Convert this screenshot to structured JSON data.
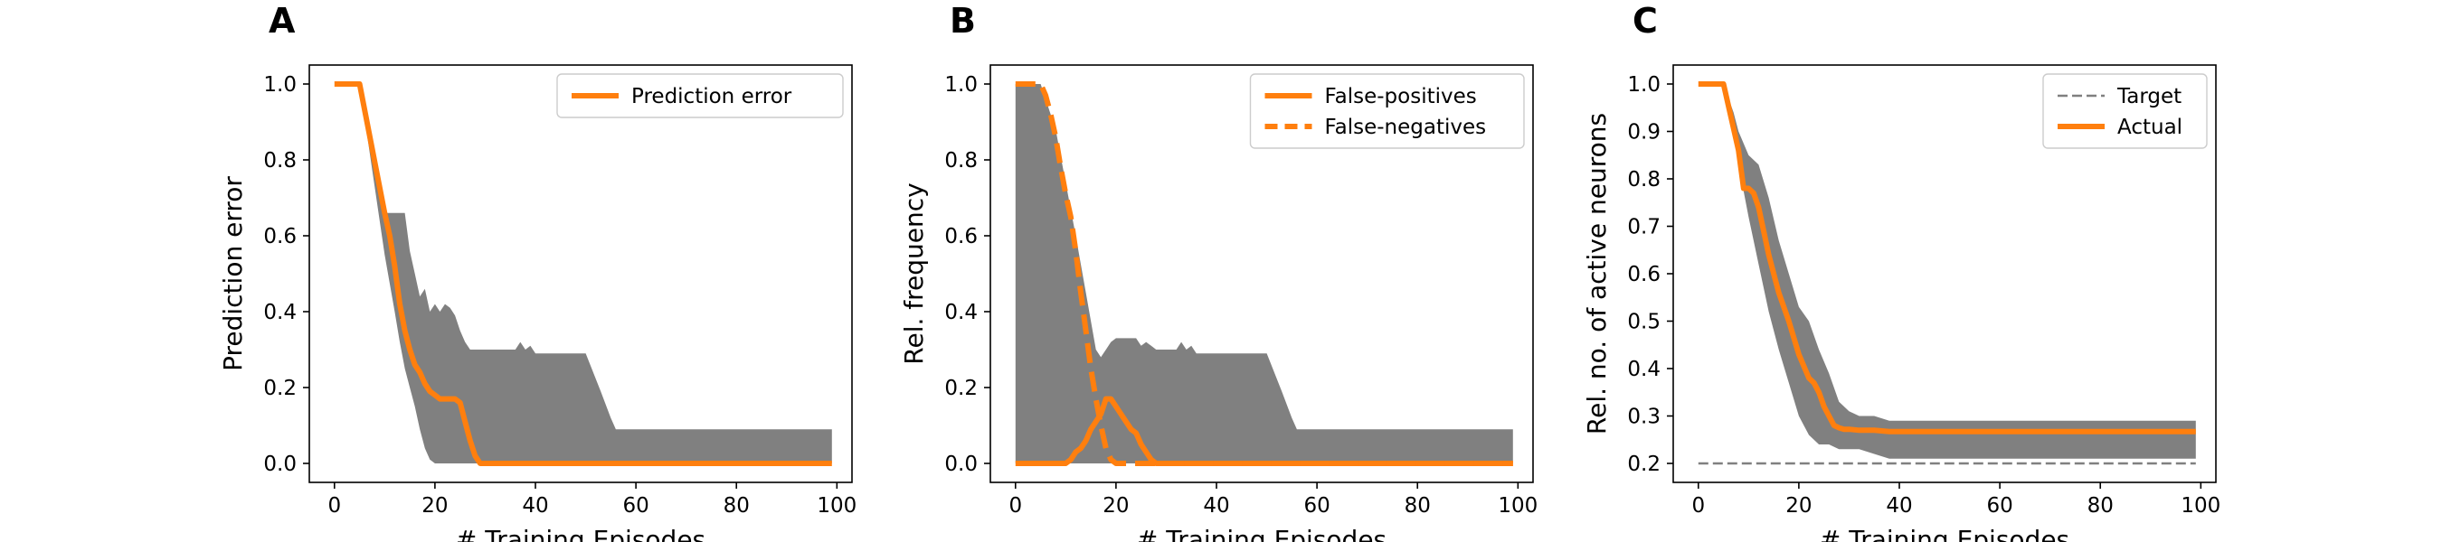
{
  "chart_data": [
    {
      "panel": "A",
      "type": "line",
      "xlabel": "# Training Episodes",
      "ylabel": "Prediction error",
      "xlim": [
        -5,
        103
      ],
      "ylim": [
        -0.05,
        1.05
      ],
      "xticks": [
        0,
        20,
        40,
        60,
        80,
        100
      ],
      "yticks": [
        0.0,
        0.2,
        0.4,
        0.6,
        0.8,
        1.0
      ],
      "ytick_labels": [
        "0.0",
        "0.2",
        "0.4",
        "0.6",
        "0.8",
        "1.0"
      ],
      "legend_position": "top-right",
      "band": {
        "x": [
          0,
          5,
          10,
          12,
          13,
          14,
          15,
          16,
          17,
          18,
          19,
          20,
          21,
          22,
          23,
          24,
          25,
          26,
          27,
          28,
          29,
          30,
          32,
          34,
          36,
          37,
          38,
          39,
          40,
          42,
          45,
          50,
          53,
          55,
          56,
          60,
          70,
          80,
          90,
          99
        ],
        "upper": [
          1.0,
          1.0,
          0.66,
          0.66,
          0.66,
          0.66,
          0.56,
          0.5,
          0.44,
          0.46,
          0.4,
          0.42,
          0.4,
          0.42,
          0.41,
          0.39,
          0.35,
          0.32,
          0.3,
          0.3,
          0.3,
          0.3,
          0.3,
          0.3,
          0.3,
          0.32,
          0.3,
          0.31,
          0.29,
          0.29,
          0.29,
          0.29,
          0.19,
          0.12,
          0.09,
          0.09,
          0.09,
          0.09,
          0.09,
          0.09
        ],
        "lower": [
          1.0,
          1.0,
          0.55,
          0.4,
          0.32,
          0.25,
          0.2,
          0.15,
          0.09,
          0.04,
          0.01,
          0.0,
          0.0,
          0.0,
          0.0,
          0.0,
          0.0,
          0.0,
          0.0,
          0.0,
          0.0,
          0.0,
          0.0,
          0.0,
          0.0,
          0.0,
          0.0,
          0.0,
          0.0,
          0.0,
          0.0,
          0.0,
          0.0,
          0.0,
          0.0,
          0.0,
          0.0,
          0.0,
          0.0,
          0.0
        ]
      },
      "series": [
        {
          "name": "Prediction error",
          "style": "solid",
          "color": "#ff7f0e",
          "x": [
            0,
            5,
            10,
            11,
            12,
            13,
            14,
            15,
            16,
            17,
            18,
            19,
            20,
            21,
            22,
            23,
            24,
            25,
            26,
            27,
            28,
            29,
            30,
            40,
            50,
            60,
            70,
            80,
            90,
            99
          ],
          "y": [
            1.0,
            1.0,
            0.66,
            0.6,
            0.52,
            0.42,
            0.35,
            0.3,
            0.26,
            0.24,
            0.21,
            0.19,
            0.18,
            0.17,
            0.17,
            0.17,
            0.17,
            0.16,
            0.11,
            0.06,
            0.02,
            0.0,
            0.0,
            0.0,
            0.0,
            0.0,
            0.0,
            0.0,
            0.0,
            0.0
          ]
        }
      ]
    },
    {
      "panel": "B",
      "type": "line",
      "xlabel": "# Training Episodes",
      "ylabel": "Rel. frequency",
      "xlim": [
        -5,
        103
      ],
      "ylim": [
        -0.05,
        1.05
      ],
      "xticks": [
        0,
        20,
        40,
        60,
        80,
        100
      ],
      "yticks": [
        0.0,
        0.2,
        0.4,
        0.6,
        0.8,
        1.0
      ],
      "ytick_labels": [
        "0.0",
        "0.2",
        "0.4",
        "0.6",
        "0.8",
        "1.0"
      ],
      "legend_position": "top-right",
      "band": {
        "x": [
          0,
          5,
          8,
          10,
          12,
          14,
          16,
          17,
          18,
          19,
          20,
          22,
          24,
          25,
          26,
          27,
          28,
          30,
          32,
          33,
          34,
          35,
          36,
          38,
          39,
          40,
          42,
          45,
          50,
          53,
          55,
          56,
          60,
          70,
          80,
          90,
          99
        ],
        "upper": [
          1.0,
          1.0,
          0.88,
          0.74,
          0.6,
          0.45,
          0.3,
          0.28,
          0.3,
          0.32,
          0.33,
          0.33,
          0.33,
          0.31,
          0.32,
          0.31,
          0.3,
          0.3,
          0.3,
          0.32,
          0.3,
          0.31,
          0.29,
          0.29,
          0.29,
          0.29,
          0.29,
          0.29,
          0.29,
          0.19,
          0.12,
          0.09,
          0.09,
          0.09,
          0.09,
          0.09,
          0.09
        ],
        "lower": [
          0.0,
          0.0,
          0.0,
          0.0,
          0.0,
          0.0,
          0.0,
          0.0,
          0.0,
          0.0,
          0.0,
          0.0,
          0.0,
          0.0,
          0.0,
          0.0,
          0.0,
          0.0,
          0.0,
          0.0,
          0.0,
          0.0,
          0.0,
          0.0,
          0.0,
          0.0,
          0.0,
          0.0,
          0.0,
          0.0,
          0.0,
          0.0,
          0.0,
          0.0,
          0.0,
          0.0,
          0.0
        ]
      },
      "series": [
        {
          "name": "False-positives",
          "style": "solid",
          "color": "#ff7f0e",
          "x": [
            0,
            5,
            10,
            11,
            12,
            13,
            14,
            15,
            16,
            17,
            18,
            19,
            20,
            21,
            22,
            23,
            24,
            25,
            26,
            27,
            28,
            30,
            40,
            50,
            60,
            70,
            80,
            90,
            99
          ],
          "y": [
            0.0,
            0.0,
            0.0,
            0.01,
            0.03,
            0.04,
            0.06,
            0.09,
            0.11,
            0.13,
            0.17,
            0.17,
            0.15,
            0.13,
            0.11,
            0.09,
            0.08,
            0.05,
            0.03,
            0.01,
            0.0,
            0.0,
            0.0,
            0.0,
            0.0,
            0.0,
            0.0,
            0.0,
            0.0
          ]
        },
        {
          "name": "False-negatives",
          "style": "dashed",
          "color": "#ff7f0e",
          "x": [
            0,
            5,
            6,
            7,
            8,
            9,
            10,
            11,
            12,
            13,
            14,
            15,
            16,
            17,
            18,
            19,
            20,
            22,
            25,
            30,
            40,
            50,
            60,
            70,
            80,
            90,
            99
          ],
          "y": [
            1.0,
            1.0,
            0.97,
            0.92,
            0.86,
            0.78,
            0.71,
            0.65,
            0.56,
            0.45,
            0.35,
            0.25,
            0.17,
            0.1,
            0.04,
            0.01,
            0.0,
            0.0,
            0.0,
            0.0,
            0.0,
            0.0,
            0.0,
            0.0,
            0.0,
            0.0,
            0.0
          ]
        }
      ]
    },
    {
      "panel": "C",
      "type": "line",
      "xlabel": "# Training Episodes",
      "ylabel": "Rel. no. of active neurons",
      "xlim": [
        -5,
        103
      ],
      "ylim": [
        0.16,
        1.04
      ],
      "xticks": [
        0,
        20,
        40,
        60,
        80,
        100
      ],
      "yticks": [
        0.2,
        0.3,
        0.4,
        0.5,
        0.6,
        0.7,
        0.8,
        0.9,
        1.0
      ],
      "ytick_labels": [
        "0.2",
        "0.3",
        "0.4",
        "0.5",
        "0.6",
        "0.7",
        "0.8",
        "0.9",
        "1.0"
      ],
      "legend_position": "top-right",
      "band": {
        "x": [
          0,
          5,
          7,
          8,
          10,
          12,
          14,
          16,
          18,
          20,
          22,
          24,
          26,
          28,
          30,
          32,
          35,
          38,
          40,
          50,
          60,
          70,
          80,
          90,
          99
        ],
        "upper": [
          1.0,
          1.0,
          0.94,
          0.9,
          0.85,
          0.83,
          0.76,
          0.67,
          0.6,
          0.53,
          0.5,
          0.44,
          0.39,
          0.33,
          0.31,
          0.3,
          0.3,
          0.29,
          0.29,
          0.29,
          0.29,
          0.29,
          0.29,
          0.29,
          0.29
        ],
        "lower": [
          1.0,
          1.0,
          0.9,
          0.83,
          0.72,
          0.62,
          0.52,
          0.44,
          0.37,
          0.3,
          0.26,
          0.24,
          0.24,
          0.23,
          0.23,
          0.23,
          0.22,
          0.21,
          0.21,
          0.21,
          0.21,
          0.21,
          0.21,
          0.21,
          0.21
        ]
      },
      "series": [
        {
          "name": "Target",
          "style": "dashed-thin",
          "color": "#808080",
          "x": [
            0,
            99
          ],
          "y": [
            0.2,
            0.2
          ]
        },
        {
          "name": "Actual",
          "style": "solid",
          "color": "#ff7f0e",
          "x": [
            0,
            5,
            8,
            9,
            10,
            11,
            12,
            13,
            14,
            15,
            16,
            18,
            20,
            22,
            23,
            24,
            25,
            26,
            27,
            28,
            29,
            30,
            32,
            35,
            38,
            40,
            50,
            60,
            70,
            80,
            90,
            99
          ],
          "y": [
            1.0,
            1.0,
            0.86,
            0.78,
            0.78,
            0.77,
            0.74,
            0.69,
            0.64,
            0.6,
            0.56,
            0.5,
            0.43,
            0.38,
            0.37,
            0.35,
            0.32,
            0.3,
            0.28,
            0.275,
            0.272,
            0.272,
            0.27,
            0.27,
            0.267,
            0.267,
            0.267,
            0.267,
            0.267,
            0.267,
            0.267,
            0.267
          ]
        }
      ]
    }
  ]
}
